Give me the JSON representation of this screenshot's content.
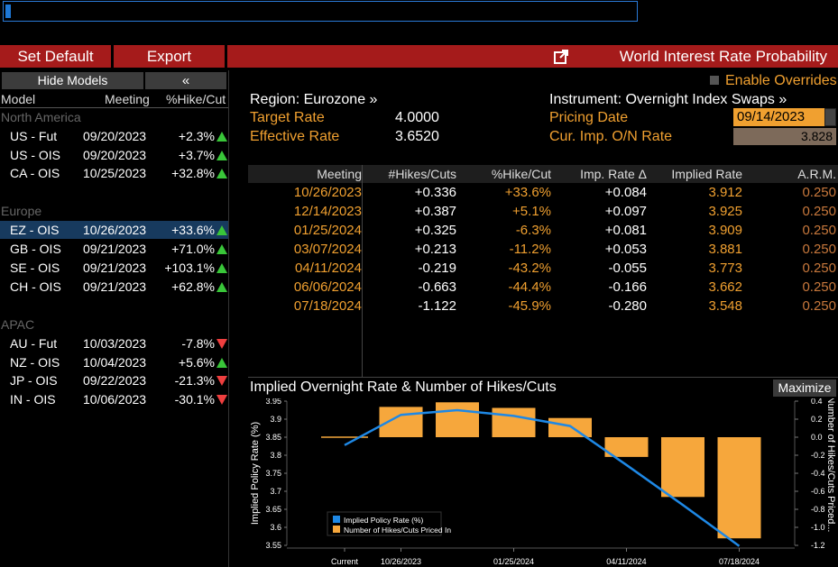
{
  "toolbar": {
    "set_default": "Set Default",
    "export": "Export",
    "title": "World Interest Rate Probability"
  },
  "left_panel": {
    "hide_models": "Hide Models",
    "collapse": "«",
    "headers": {
      "model": "Model",
      "meeting": "Meeting",
      "hike_cut": "%Hike/Cut"
    },
    "groups": [
      {
        "name": "North America",
        "rows": [
          {
            "model": "US - Fut",
            "meeting": "09/20/2023",
            "pct": "+2.3%",
            "dir": "up"
          },
          {
            "model": "US - OIS",
            "meeting": "09/20/2023",
            "pct": "+3.7%",
            "dir": "up"
          },
          {
            "model": "CA - OIS",
            "meeting": "10/25/2023",
            "pct": "+32.8%",
            "dir": "up"
          }
        ]
      },
      {
        "name": "Europe",
        "rows": [
          {
            "model": "EZ - OIS",
            "meeting": "10/26/2023",
            "pct": "+33.6%",
            "dir": "up",
            "selected": true
          },
          {
            "model": "GB - OIS",
            "meeting": "09/21/2023",
            "pct": "+71.0%",
            "dir": "up"
          },
          {
            "model": "SE - OIS",
            "meeting": "09/21/2023",
            "pct": "+103.1%",
            "dir": "up"
          },
          {
            "model": "CH - OIS",
            "meeting": "09/21/2023",
            "pct": "+62.8%",
            "dir": "up"
          }
        ]
      },
      {
        "name": "APAC",
        "rows": [
          {
            "model": "AU - Fut",
            "meeting": "10/03/2023",
            "pct": "-7.8%",
            "dir": "down"
          },
          {
            "model": "NZ - OIS",
            "meeting": "10/04/2023",
            "pct": "+5.6%",
            "dir": "up"
          },
          {
            "model": "JP - OIS",
            "meeting": "09/22/2023",
            "pct": "-21.3%",
            "dir": "down"
          },
          {
            "model": "IN - OIS",
            "meeting": "10/06/2023",
            "pct": "-30.1%",
            "dir": "down"
          }
        ]
      }
    ]
  },
  "info": {
    "region": "Region: Eurozone »",
    "instrument": "Instrument: Overnight Index Swaps »",
    "enable_overrides": "Enable Overrides",
    "target_rate_label": "Target Rate",
    "target_rate_value": "4.0000",
    "effective_rate_label": "Effective Rate",
    "effective_rate_value": "3.6520",
    "pricing_date_label": "Pricing Date",
    "pricing_date_value": "09/14/2023",
    "cur_imp_label": "Cur. Imp. O/N Rate",
    "cur_imp_value": "3.828"
  },
  "table": {
    "headers": [
      "Meeting",
      "#Hikes/Cuts",
      "%Hike/Cut",
      "Imp. Rate Δ",
      "Implied Rate",
      "A.R.M."
    ],
    "rows": [
      [
        "10/26/2023",
        "+0.336",
        "+33.6%",
        "+0.084",
        "3.912",
        "0.250"
      ],
      [
        "12/14/2023",
        "+0.387",
        "+5.1%",
        "+0.097",
        "3.925",
        "0.250"
      ],
      [
        "01/25/2024",
        "+0.325",
        "-6.3%",
        "+0.081",
        "3.909",
        "0.250"
      ],
      [
        "03/07/2024",
        "+0.213",
        "-11.2%",
        "+0.053",
        "3.881",
        "0.250"
      ],
      [
        "04/11/2024",
        "-0.219",
        "-43.2%",
        "-0.055",
        "3.773",
        "0.250"
      ],
      [
        "06/06/2024",
        "-0.663",
        "-44.4%",
        "-0.166",
        "3.662",
        "0.250"
      ],
      [
        "07/18/2024",
        "-1.122",
        "-45.9%",
        "-0.280",
        "3.548",
        "0.250"
      ]
    ]
  },
  "chart": {
    "title": "Implied Overnight Rate & Number of Hikes/Cuts",
    "maximize": "Maximize"
  },
  "colors": {
    "toolbar_red": "#a51b1b",
    "orange": "#f0a030",
    "line_blue": "#1e88e5",
    "up_green": "#39c639",
    "down_red": "#ef3f3f",
    "select_blue": "#173a5e"
  },
  "chart_data": {
    "type": "bar",
    "title": "Implied Overnight Rate & Number of Hikes/Cuts",
    "xlabel": "",
    "ylabel": "Implied Policy Rate (%)",
    "y2label": "Number of Hikes/Cuts Priced...",
    "categories": [
      "Current",
      "10/26/2023",
      "12/14/2023",
      "01/25/2024",
      "03/07/2024",
      "04/11/2024",
      "06/06/2024",
      "07/18/2024"
    ],
    "x_tick_labels": [
      "Current",
      "10/26/2023",
      "01/25/2024",
      "04/11/2024",
      "07/18/2024"
    ],
    "ylim": [
      3.55,
      3.95
    ],
    "y_ticks": [
      "3.95",
      "3.9",
      "3.85",
      "3.8",
      "3.75",
      "3.7",
      "3.65",
      "3.6",
      "3.55"
    ],
    "y2lim": [
      -1.2,
      0.4
    ],
    "y2_ticks": [
      "0.4",
      "0.2",
      "0.0",
      "-0.2",
      "-0.4",
      "-0.6",
      "-0.8",
      "-1.0",
      "-1.2"
    ],
    "series": [
      {
        "name": "Implied Policy Rate (%)",
        "type": "line",
        "axis": "left",
        "color": "#1e88e5",
        "values": [
          3.828,
          3.912,
          3.925,
          3.909,
          3.881,
          3.773,
          3.662,
          3.548
        ]
      },
      {
        "name": "Number of Hikes/Cuts Priced In",
        "type": "bar",
        "axis": "right",
        "color": "#f6a73c",
        "values": [
          0,
          0.336,
          0.387,
          0.325,
          0.213,
          -0.219,
          -0.663,
          -1.122
        ]
      }
    ],
    "legend": "bottom-left",
    "grid": false
  }
}
